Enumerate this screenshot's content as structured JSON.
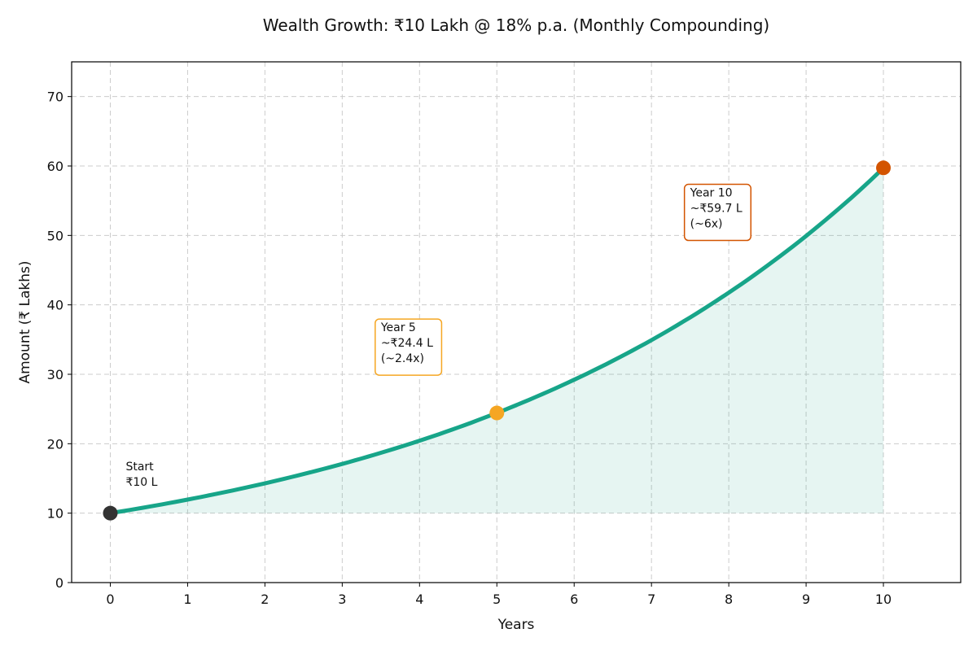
{
  "chart_data": {
    "type": "line",
    "title": "Wealth Growth: ₹10 Lakh @ 18% p.a. (Monthly Compounding)",
    "xlabel": "Years",
    "ylabel": "Amount (₹ Lakhs)",
    "xlim": [
      -0.5,
      11
    ],
    "ylim": [
      0,
      75
    ],
    "xticks": [
      0,
      1,
      2,
      3,
      4,
      5,
      6,
      7,
      8,
      9,
      10
    ],
    "yticks": [
      0,
      10,
      20,
      30,
      40,
      50,
      60,
      70
    ],
    "grid": true,
    "fill_under_curve": true,
    "series": [
      {
        "principal": 10,
        "annual_rate_pct": 18,
        "compounding": "monthly",
        "x": [
          0,
          1,
          2,
          3,
          4,
          5,
          6,
          7,
          8,
          9,
          10
        ],
        "y": [
          10.0,
          11.96,
          14.3,
          17.09,
          20.44,
          24.43,
          29.22,
          34.94,
          41.78,
          49.95,
          59.73
        ],
        "color": "#17a589"
      }
    ],
    "markers": [
      {
        "x": 0,
        "y": 10,
        "color": "#333333"
      },
      {
        "x": 5,
        "y": 24.43,
        "color": "#f5a623"
      },
      {
        "x": 10,
        "y": 59.73,
        "color": "#d35400"
      }
    ],
    "annotations": [
      {
        "lines": [
          "Start",
          "₹10 L"
        ],
        "box": false,
        "color": "#111111"
      },
      {
        "lines": [
          "Year 5",
          "~₹24.4 L",
          "(~2.4x)"
        ],
        "box": true,
        "color": "#f5a623"
      },
      {
        "lines": [
          "Year 10",
          "~₹59.7 L",
          "(~6x)"
        ],
        "box": true,
        "color": "#d35400"
      }
    ]
  }
}
